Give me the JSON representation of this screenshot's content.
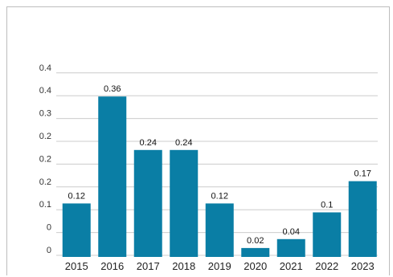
{
  "chart_data": {
    "type": "bar",
    "title": "",
    "xlabel": "",
    "ylabel": "",
    "categories": [
      "2015",
      "2016",
      "2017",
      "2018",
      "2019",
      "2020",
      "2021",
      "2022",
      "2023"
    ],
    "values": [
      0.12,
      0.36,
      0.24,
      0.24,
      0.12,
      0.02,
      0.04,
      0.1,
      0.17
    ],
    "data_labels": [
      "0.12",
      "0.36",
      "0.24",
      "0.24",
      "0.12",
      "0.02",
      "0.04",
      "0.1",
      "0.17"
    ],
    "y_tick_labels": [
      "0",
      "0",
      "0.1",
      "0.2",
      "0.2",
      "0.2",
      "0.3",
      "0.4",
      "0.4"
    ],
    "ylim": [
      0,
      0.4
    ],
    "grid": true,
    "legend": "none",
    "bar_color": "#0a7ea5"
  }
}
